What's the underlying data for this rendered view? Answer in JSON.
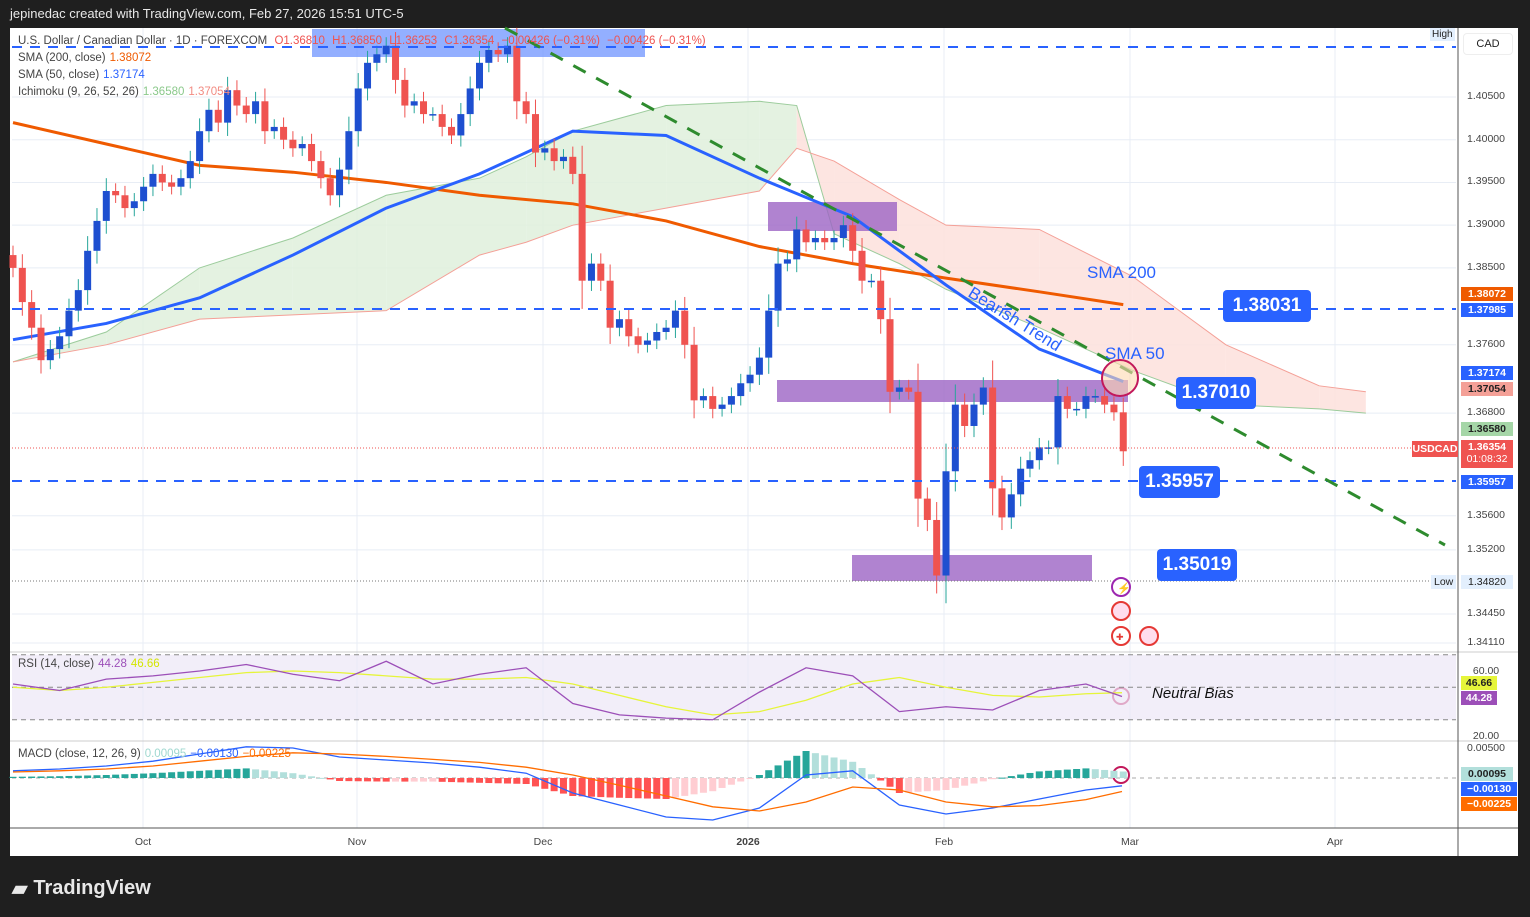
{
  "header": {
    "credit": "jepinedac created with TradingView.com, Feb 27, 2026 15:51 UTC-5"
  },
  "legend": {
    "symbol": "U.S. Dollar / Canadian Dollar · 1D · FOREXCOM",
    "ohlc": {
      "o": "O1.36810",
      "h": "H1.36850",
      "l": "L1.36253",
      "c": "C1.36354",
      "chg": "−0.00426 (−0.31%)",
      "chg2": "−0.00426 (−0.31%)"
    },
    "sma200": {
      "label": "SMA (200, close)",
      "value": "1.38072"
    },
    "sma50": {
      "label": "SMA (50, close)",
      "value": "1.37174"
    },
    "ichimoku": {
      "label": "Ichimoku (9, 26, 52, 26)",
      "v1": "1.36580",
      "v2": "1.37054"
    },
    "rsi": {
      "label": "RSI (14, close)",
      "v1": "44.28",
      "v2": "46.66"
    },
    "macd": {
      "label": "MACD (close, 12, 26, 9)",
      "v1": "0.00095",
      "v2": "−0.00130",
      "v3": "−0.00225"
    }
  },
  "axis": {
    "currency": "CAD",
    "high": "High",
    "low": "Low",
    "price_ticks": [
      "1.40500",
      "1.40000",
      "1.39500",
      "1.39000",
      "1.38500",
      "1.37600",
      "1.36800",
      "1.35600",
      "1.35200",
      "1.34450",
      "1.34110"
    ],
    "rsi_ticks": [
      "60.00",
      "20.00"
    ],
    "macd_ticks": [
      "0.00500"
    ],
    "time_ticks": [
      "Oct",
      "Nov",
      "Dec",
      "2026",
      "Feb",
      "Mar",
      "Apr"
    ],
    "tags": {
      "sma200": "1.38072",
      "level1": "1.37985",
      "sma50": "1.37174",
      "ichi": "1.37054",
      "ichi_g": "1.36580",
      "symbol": "USDCAD",
      "price": "1.36354",
      "countdown": "01:08:32",
      "level3": "1.35957",
      "low": "1.34820",
      "rsi_ma": "46.66",
      "rsi": "44.28",
      "hist": "0.00095",
      "macd": "−0.00130",
      "signal": "−0.00225"
    }
  },
  "annotations": {
    "levels": [
      "1.38031",
      "1.37010",
      "1.35957",
      "1.35019"
    ],
    "bearish": "Bearish Trend",
    "sma200": "SMA 200",
    "sma50": "SMA 50",
    "neutral": "Neutral Bias"
  },
  "footer": {
    "brand": "TradingView"
  },
  "colors": {
    "up": "#1e4fd0",
    "down": "#ef5350",
    "sma200": "#ef5a00",
    "sma50": "#2962ff",
    "trend": "#2e8b2e",
    "zone": "#9c64c4"
  },
  "chart_data": {
    "type": "candlestick",
    "title": "USDCAD 1D",
    "ylim": [
      1.3411,
      1.4125
    ],
    "closes": [
      1.385,
      1.381,
      1.378,
      1.3742,
      1.3755,
      1.377,
      1.38,
      1.3824,
      1.387,
      1.3905,
      1.394,
      1.3935,
      1.392,
      1.3928,
      1.3945,
      1.396,
      1.395,
      1.3945,
      1.3955,
      1.3975,
      1.401,
      1.4035,
      1.402,
      1.4058,
      1.404,
      1.403,
      1.4045,
      1.401,
      1.4015,
      1.4,
      1.399,
      1.3995,
      1.3975,
      1.3955,
      1.3935,
      1.3965,
      1.401,
      1.406,
      1.409,
      1.41,
      1.411,
      1.407,
      1.404,
      1.4045,
      1.403,
      1.403,
      1.4015,
      1.4005,
      1.403,
      1.406,
      1.409,
      1.4105,
      1.41,
      1.411,
      1.4045,
      1.403,
      1.3985,
      1.399,
      1.3975,
      1.398,
      1.396,
      1.3835,
      1.3855,
      1.3835,
      1.378,
      1.379,
      1.377,
      1.376,
      1.3765,
      1.3775,
      1.378,
      1.38,
      1.376,
      1.3695,
      1.37,
      1.3685,
      1.369,
      1.37,
      1.3715,
      1.3725,
      1.3745,
      1.38,
      1.3855,
      1.386,
      1.3895,
      1.388,
      1.3885,
      1.388,
      1.3885,
      1.39,
      1.387,
      1.3835,
      1.3835,
      1.379,
      1.3705,
      1.371,
      1.3705,
      1.358,
      1.3555,
      1.349,
      1.3612,
      1.369,
      1.3665,
      1.369,
      1.371,
      1.3592,
      1.3558,
      1.3585,
      1.3615,
      1.3625,
      1.364,
      1.364,
      1.37,
      1.3685,
      1.3685,
      1.37,
      1.37,
      1.369,
      1.3681,
      1.36354
    ],
    "sma200": {
      "bars": [
        0,
        10,
        20,
        30,
        40,
        50,
        60,
        70,
        80,
        90,
        100,
        110,
        119
      ],
      "values": [
        1.402,
        1.3995,
        1.397,
        1.3962,
        1.395,
        1.3935,
        1.3925,
        1.3905,
        1.3875,
        1.3855,
        1.3838,
        1.3822,
        1.3807
      ]
    },
    "sma50": {
      "bars": [
        0,
        10,
        20,
        30,
        40,
        50,
        60,
        70,
        80,
        90,
        100,
        110,
        119
      ],
      "values": [
        1.3766,
        1.3785,
        1.3815,
        1.3865,
        1.392,
        1.396,
        1.401,
        1.4005,
        1.3955,
        1.391,
        1.383,
        1.3755,
        1.3717
      ]
    },
    "ichimoku": {
      "bars": [
        0,
        10,
        20,
        30,
        40,
        50,
        55,
        60,
        70,
        80,
        84,
        88,
        95,
        100,
        110,
        120,
        130,
        140,
        145
      ],
      "span_a": [
        1.374,
        1.3775,
        1.385,
        1.3885,
        1.3935,
        1.3955,
        1.398,
        1.401,
        1.404,
        1.4045,
        1.404,
        1.389,
        1.3855,
        1.3825,
        1.378,
        1.373,
        1.369,
        1.3685,
        1.368
      ],
      "span_b": [
        1.374,
        1.376,
        1.379,
        1.3795,
        1.38,
        1.3865,
        1.388,
        1.39,
        1.392,
        1.394,
        1.399,
        1.3975,
        1.393,
        1.39,
        1.3895,
        1.384,
        1.376,
        1.3712,
        1.3705
      ]
    },
    "rsi": {
      "step": 5,
      "values": [
        52,
        48,
        55,
        57,
        60,
        64,
        58,
        54,
        66,
        52,
        58,
        62,
        40,
        33,
        31,
        30,
        47,
        62,
        57,
        35,
        38,
        36,
        48,
        52,
        44.28
      ],
      "ma": [
        50,
        48,
        50,
        53,
        56,
        59,
        60,
        59,
        57,
        55,
        55,
        56,
        52,
        45,
        38,
        33,
        35,
        42,
        52,
        56,
        50,
        45,
        44,
        46,
        46.66
      ]
    },
    "macd": {
      "step": 5,
      "macd": [
        0.0012,
        0.0015,
        0.002,
        0.0028,
        0.004,
        0.0052,
        0.005,
        0.0035,
        0.003,
        0.0025,
        0.0018,
        0.0008,
        -0.0025,
        -0.0045,
        -0.0065,
        -0.007,
        -0.005,
        0.0005,
        0.0012,
        -0.0045,
        -0.006,
        -0.005,
        -0.0035,
        -0.002,
        -0.0013
      ],
      "signal": [
        0.001,
        0.0012,
        0.0015,
        0.002,
        0.0028,
        0.0036,
        0.0042,
        0.004,
        0.0036,
        0.0031,
        0.0026,
        0.0018,
        0.0005,
        -0.0012,
        -0.003,
        -0.0048,
        -0.0055,
        -0.004,
        -0.0015,
        -0.002,
        -0.004,
        -0.0048,
        -0.0046,
        -0.0036,
        -0.00225
      ]
    }
  }
}
